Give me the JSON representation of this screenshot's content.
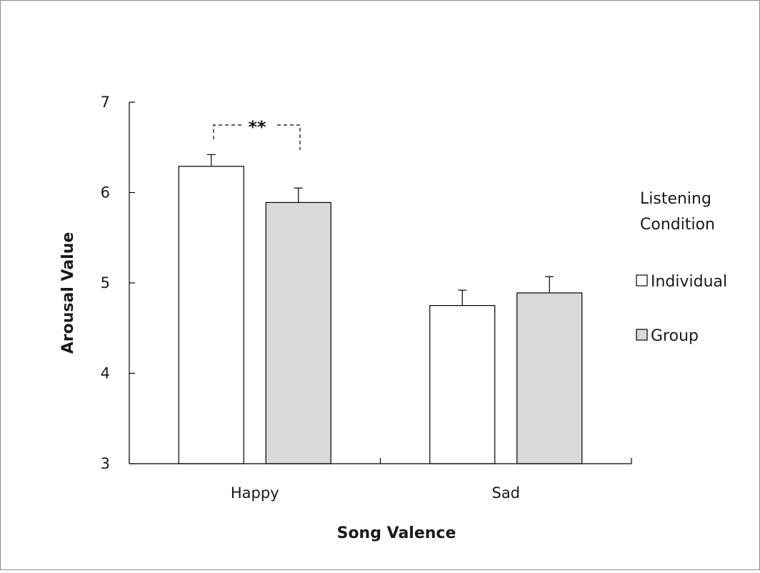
{
  "chart_data": {
    "type": "bar",
    "categories": [
      "Happy",
      "Sad"
    ],
    "series": [
      {
        "name": "Individual",
        "color": "#ffffff",
        "values": [
          6.29,
          4.75
        ],
        "errors": [
          0.13,
          0.17
        ]
      },
      {
        "name": "Group",
        "color": "#d9d9d9",
        "values": [
          5.89,
          4.89
        ],
        "errors": [
          0.16,
          0.18
        ]
      }
    ],
    "xlabel": "Song Valence",
    "ylabel": "Arousal Value",
    "ylim": [
      3,
      7
    ],
    "yticks": [
      "3",
      "4",
      "5",
      "6",
      "7"
    ],
    "legend": {
      "title_lines": [
        "Listening",
        "Condition"
      ],
      "placement": "right"
    },
    "annotations": [
      {
        "text": "**",
        "category": "Happy",
        "between": [
          "Individual",
          "Group"
        ]
      }
    ],
    "grid": false
  }
}
